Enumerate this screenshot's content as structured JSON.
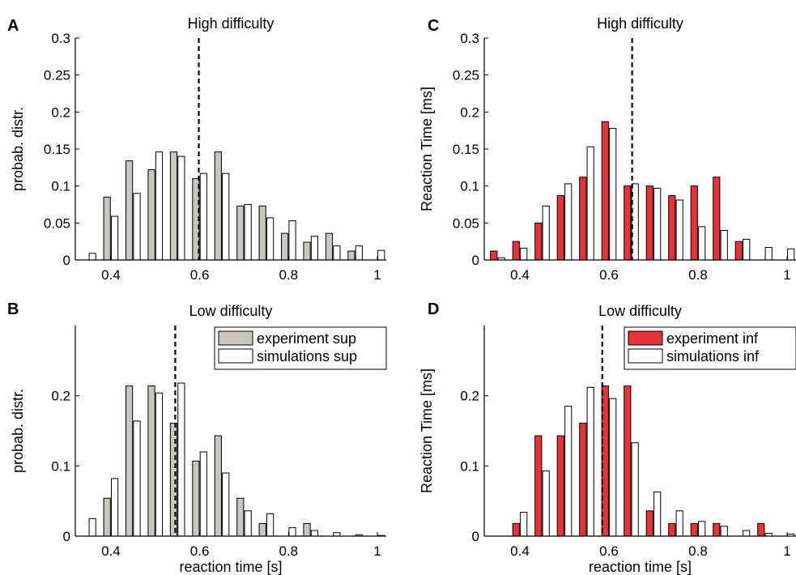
{
  "colors": {
    "experiment_sup": "#c8c6c0",
    "experiment_inf": "#e8323a",
    "simulation": "#ffffff",
    "stroke": "#000000"
  },
  "chart_data": [
    {
      "panel": "A",
      "type": "bar",
      "title": "High difficulty",
      "xlabel": "",
      "ylabel": "probab. distr.",
      "xlim": [
        0.32,
        1.02
      ],
      "ylim": [
        0,
        0.3
      ],
      "xticks": [
        0.4,
        0.6,
        0.8,
        1
      ],
      "xtick_labels": [
        "0.4",
        "0.6",
        "0.8",
        "1"
      ],
      "yticks": [
        0,
        0.05,
        0.1,
        0.15,
        0.2,
        0.25,
        0.3
      ],
      "ytick_labels": [
        "0",
        "0.05",
        "0.1",
        "0.15",
        "0.2",
        "0.25",
        "0.3"
      ],
      "threshold_x": 0.598,
      "series": [
        {
          "key": "experiment_sup",
          "fill": "#c8c6c0",
          "x": [
            0.35,
            0.4,
            0.45,
            0.5,
            0.55,
            0.6,
            0.65,
            0.7,
            0.75,
            0.8,
            0.85,
            0.9,
            0.95,
            1.0
          ],
          "values": [
            0,
            0.085,
            0.134,
            0.122,
            0.146,
            0.11,
            0.146,
            0.073,
            0.073,
            0.036,
            0.024,
            0.036,
            0.012,
            0
          ]
        },
        {
          "key": "simulation",
          "fill": "#ffffff",
          "x": [
            0.35,
            0.4,
            0.45,
            0.5,
            0.55,
            0.6,
            0.65,
            0.7,
            0.75,
            0.8,
            0.85,
            0.9,
            0.95,
            1.0
          ],
          "values": [
            0.009,
            0.059,
            0.09,
            0.146,
            0.14,
            0.117,
            0.117,
            0.075,
            0.057,
            0.053,
            0.032,
            0.019,
            0.019,
            0.013
          ]
        }
      ],
      "legend": null
    },
    {
      "panel": "B",
      "type": "bar",
      "title": "Low difficulty",
      "xlabel": "reaction time [s]",
      "ylabel": "probab. distr.",
      "xlim": [
        0.32,
        1.02
      ],
      "ylim": [
        0,
        0.3
      ],
      "xticks": [
        0.4,
        0.6,
        0.8,
        1
      ],
      "xtick_labels": [
        "0.4",
        "0.6",
        "0.8",
        "1"
      ],
      "yticks": [
        0,
        0.1,
        0.2
      ],
      "ytick_labels": [
        "0",
        "0.1",
        "0.2"
      ],
      "threshold_x": 0.545,
      "series": [
        {
          "key": "experiment_sup",
          "name": "experiment sup",
          "fill": "#c8c6c0",
          "x": [
            0.35,
            0.4,
            0.45,
            0.5,
            0.55,
            0.6,
            0.65,
            0.7,
            0.75,
            0.8,
            0.85,
            0.9,
            0.95,
            1.0
          ],
          "values": [
            0,
            0.054,
            0.214,
            0.214,
            0.161,
            0.107,
            0.143,
            0.054,
            0.018,
            0,
            0.018,
            0,
            0,
            0
          ]
        },
        {
          "key": "simulation",
          "name": "simulations sup",
          "fill": "#ffffff",
          "x": [
            0.35,
            0.4,
            0.45,
            0.5,
            0.55,
            0.6,
            0.65,
            0.7,
            0.75,
            0.8,
            0.85,
            0.9,
            0.95,
            1.0
          ],
          "values": [
            0.025,
            0.082,
            0.164,
            0.204,
            0.218,
            0.12,
            0.09,
            0.036,
            0.032,
            0.012,
            0.008,
            0.005,
            0.002,
            0.001
          ]
        }
      ],
      "legend": "top-right"
    },
    {
      "panel": "C",
      "type": "bar",
      "title": "High difficulty",
      "xlabel": "",
      "ylabel": "Reaction Time [ms]",
      "xlim": [
        0.32,
        1.02
      ],
      "ylim": [
        0,
        0.3
      ],
      "xticks": [
        0.4,
        0.6,
        0.8,
        1
      ],
      "xtick_labels": [
        "0.4",
        "0.6",
        "0.8",
        "1"
      ],
      "yticks": [
        0,
        0.05,
        0.1,
        0.15,
        0.2,
        0.25,
        0.3
      ],
      "ytick_labels": [
        "0",
        "0.05",
        "0.1",
        "0.15",
        "0.2",
        "0.25",
        "0.3"
      ],
      "threshold_x": 0.652,
      "series": [
        {
          "key": "experiment_inf",
          "fill": "#e8323a",
          "x": [
            0.35,
            0.4,
            0.45,
            0.5,
            0.55,
            0.6,
            0.65,
            0.7,
            0.75,
            0.8,
            0.85,
            0.9,
            0.95,
            1.0
          ],
          "values": [
            0.012,
            0.025,
            0.05,
            0.087,
            0.112,
            0.187,
            0.1,
            0.1,
            0.087,
            0.1,
            0.112,
            0.025,
            0,
            0
          ]
        },
        {
          "key": "simulation",
          "fill": "#ffffff",
          "x": [
            0.35,
            0.4,
            0.45,
            0.5,
            0.55,
            0.6,
            0.65,
            0.7,
            0.75,
            0.8,
            0.85,
            0.9,
            0.95,
            1.0
          ],
          "values": [
            0.003,
            0.016,
            0.073,
            0.103,
            0.153,
            0.178,
            0.103,
            0.097,
            0.081,
            0.045,
            0.04,
            0.028,
            0.017,
            0.015
          ]
        }
      ],
      "legend": null
    },
    {
      "panel": "D",
      "type": "bar",
      "title": "Low difficulty",
      "xlabel": "reaction time [s]",
      "ylabel": "Reaction Time [ms]",
      "xlim": [
        0.32,
        1.02
      ],
      "ylim": [
        0,
        0.3
      ],
      "xticks": [
        0.4,
        0.6,
        0.8,
        1
      ],
      "xtick_labels": [
        "0.4",
        "0.6",
        "0.8",
        "1"
      ],
      "yticks": [
        0,
        0.1,
        0.2
      ],
      "ytick_labels": [
        "0",
        "0.1",
        "0.2"
      ],
      "threshold_x": 0.585,
      "series": [
        {
          "key": "experiment_inf",
          "name": "experiment inf",
          "fill": "#e8323a",
          "x": [
            0.35,
            0.4,
            0.45,
            0.5,
            0.55,
            0.6,
            0.65,
            0.7,
            0.75,
            0.8,
            0.85,
            0.9,
            0.95,
            1.0
          ],
          "values": [
            0,
            0.018,
            0.143,
            0.143,
            0.161,
            0.214,
            0.214,
            0.036,
            0.018,
            0.018,
            0.018,
            0,
            0.018,
            0
          ]
        },
        {
          "key": "simulation",
          "name": "simulations inf",
          "fill": "#ffffff",
          "x": [
            0.35,
            0.4,
            0.45,
            0.5,
            0.55,
            0.6,
            0.65,
            0.7,
            0.75,
            0.8,
            0.85,
            0.9,
            0.95,
            1.0
          ],
          "values": [
            0,
            0.034,
            0.093,
            0.185,
            0.212,
            0.196,
            0.133,
            0.063,
            0.036,
            0.021,
            0.014,
            0.008,
            0.004,
            0.003
          ]
        }
      ],
      "legend": "top-right"
    }
  ]
}
